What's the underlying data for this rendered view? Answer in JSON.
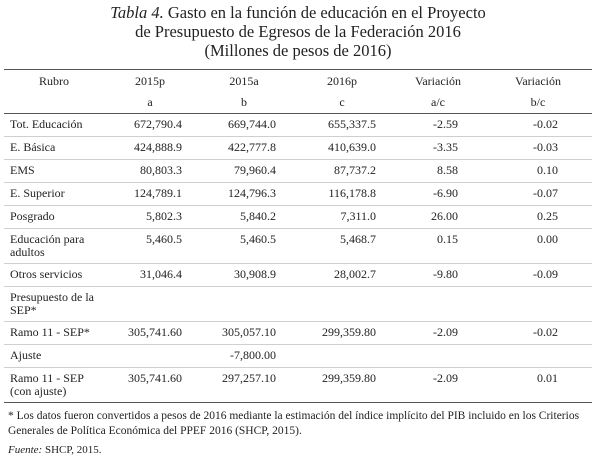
{
  "title": {
    "label": "Tabla 4.",
    "line1": "Gasto en la función de educación en el Proyecto",
    "line2": "de Presupuesto de Egresos de la Federación 2016",
    "line3": "(Millones de pesos de 2016)"
  },
  "table": {
    "header": [
      "Rubro",
      "2015p",
      "2015a",
      "2016p",
      "Variación",
      "Variación"
    ],
    "subheader": [
      null,
      "a",
      "b",
      "c",
      "a/c",
      "b/c"
    ],
    "rows": [
      [
        "Tot. Educación",
        "672,790.4",
        "669,744.0",
        "655,337.5",
        "-2.59",
        "-0.02"
      ],
      [
        "E. Básica",
        "424,888.9",
        "422,777.8",
        "410,639.0",
        "-3.35",
        "-0.03"
      ],
      [
        "EMS",
        "80,803.3",
        "79,960.4",
        "87,737.2",
        "8.58",
        "0.10"
      ],
      [
        "E. Superior",
        "124,789.1",
        "124,796.3",
        "116,178.8",
        "-6.90",
        "-0.07"
      ],
      [
        "Posgrado",
        "5,802.3",
        "5,840.2",
        "7,311.0",
        "26.00",
        "0.25"
      ],
      [
        "Educación para adultos",
        "5,460.5",
        "5,460.5",
        "5,468.7",
        "0.15",
        "0.00"
      ],
      [
        "Otros servicios",
        "31,046.4",
        "30,908.9",
        "28,002.7",
        "-9.80",
        "-0.09"
      ],
      [
        "Presupuesto de la SEP*",
        null,
        null,
        null,
        null,
        null
      ],
      [
        "Ramo 11 - SEP*",
        "305,741.60",
        "305,057.10",
        "299,359.80",
        "-2.09",
        "-0.02"
      ],
      [
        "Ajuste",
        null,
        "-7,800.00",
        null,
        null,
        null
      ],
      [
        "Ramo 11 - SEP (con ajuste)",
        "305,741.60",
        "297,257.10",
        "299,359.80",
        "-2.09",
        "0.01"
      ]
    ]
  },
  "footnote": "* Los datos fueron convertidos a pesos de 2016 mediante la estimación del índice implícito del PIB incluido en los Criterios Generales de Política Económica del PPEF 2016 (SHCP, 2015).",
  "source": {
    "label": "Fuente:",
    "text": "SHCP, 2015."
  }
}
